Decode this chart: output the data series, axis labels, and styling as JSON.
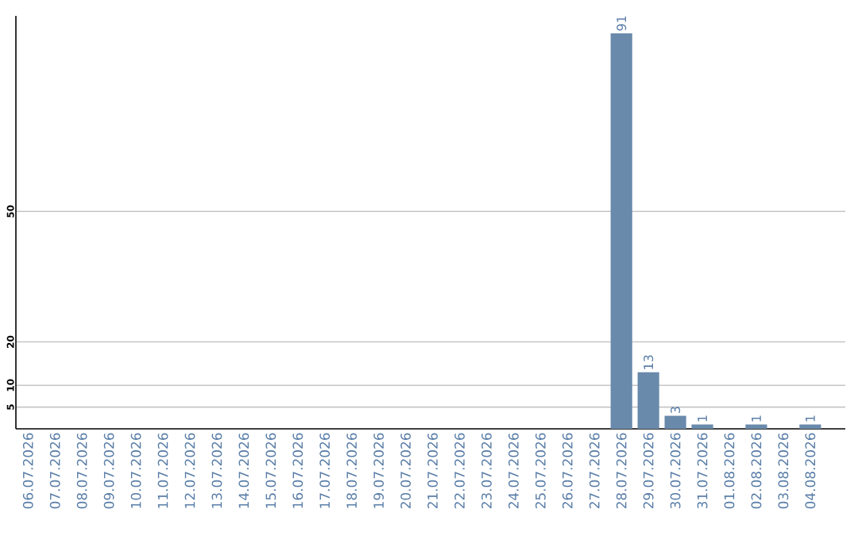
{
  "chart_data": {
    "type": "bar",
    "categories": [
      "06.07.2026",
      "07.07.2026",
      "08.07.2026",
      "09.07.2026",
      "10.07.2026",
      "11.07.2026",
      "12.07.2026",
      "13.07.2026",
      "14.07.2026",
      "15.07.2026",
      "16.07.2026",
      "17.07.2026",
      "18.07.2026",
      "19.07.2026",
      "20.07.2026",
      "21.07.2026",
      "22.07.2026",
      "23.07.2026",
      "24.07.2026",
      "25.07.2026",
      "26.07.2026",
      "27.07.2026",
      "28.07.2026",
      "29.07.2026",
      "30.07.2026",
      "31.07.2026",
      "01.08.2026",
      "02.08.2026",
      "03.08.2026",
      "04.08.2026"
    ],
    "values": [
      0,
      0,
      0,
      0,
      0,
      0,
      0,
      0,
      0,
      0,
      0,
      0,
      0,
      0,
      0,
      0,
      0,
      0,
      0,
      0,
      0,
      0,
      91,
      13,
      3,
      1,
      0,
      1,
      0,
      1
    ],
    "value_labels": [
      null,
      null,
      null,
      null,
      null,
      null,
      null,
      null,
      null,
      null,
      null,
      null,
      null,
      null,
      null,
      null,
      null,
      null,
      null,
      null,
      null,
      null,
      "91",
      "13",
      "3",
      "1",
      null,
      "1",
      null,
      "1"
    ],
    "color": "#6a8aab",
    "ylim": [
      0,
      95
    ],
    "yticks": [
      5,
      10,
      20,
      50
    ],
    "grid": "y"
  }
}
